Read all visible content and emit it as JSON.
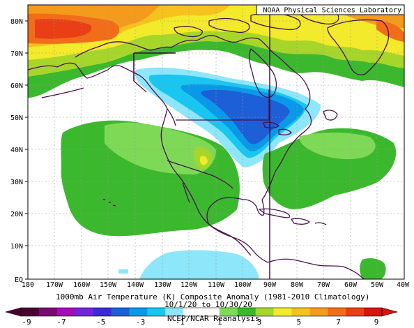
{
  "credit": "NOAA Physical Sciences Laboratory",
  "title": "1000mb Air Temperature (K) Composite Anomaly (1981-2010 Climatology)",
  "date_range": "10/1/20 to 10/30/20",
  "source": "NCEP/NCAR Reanalysis",
  "lat_labels": [
    "80N",
    "70N",
    "60N",
    "50N",
    "40N",
    "30N",
    "20N",
    "10N",
    "EQ"
  ],
  "lon_labels": [
    "180",
    "170W",
    "160W",
    "150W",
    "140W",
    "130W",
    "120W",
    "110W",
    "100W",
    "90W",
    "80W",
    "70W",
    "60W",
    "50W",
    "40W"
  ],
  "colorbar": {
    "ticks": [
      "-9",
      "-7",
      "-5",
      "-3",
      "-1",
      "1",
      "3",
      "5",
      "7",
      "9"
    ],
    "colors": [
      "#4b0033",
      "#7a0a6e",
      "#a50cb5",
      "#7424d8",
      "#3b2ad6",
      "#1d5fd6",
      "#0a98e8",
      "#18c6f0",
      "#8ee6fa",
      "#ffffff",
      "#ffffff",
      "#7ed957",
      "#3cb82e",
      "#a6d62a",
      "#f2ea2a",
      "#f7c21d",
      "#f59b1b",
      "#f26d1a",
      "#ea3e16",
      "#d8140f"
    ]
  },
  "map": {
    "lat_range": [
      0,
      85
    ],
    "lon_range": [
      -180,
      -40
    ],
    "grid": true,
    "projection": "cylindrical equidistant"
  }
}
